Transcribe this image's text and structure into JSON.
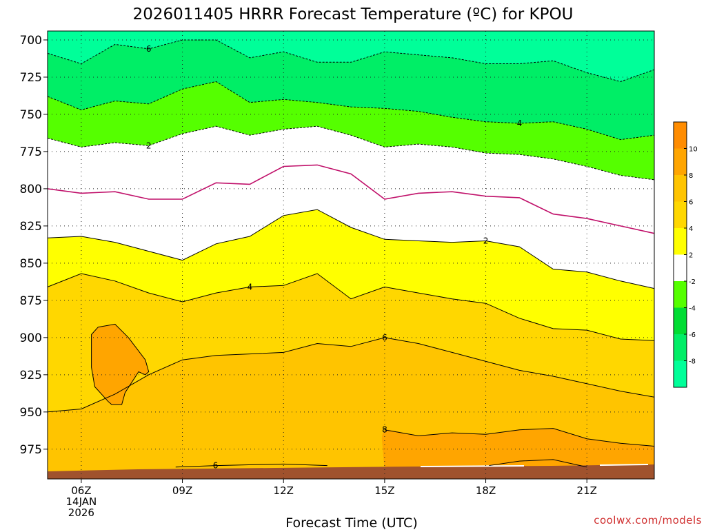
{
  "chart_data": {
    "type": "contour",
    "title": "2026011405 HRRR Forecast Temperature (ºC) for KPOU",
    "xlabel": "Forecast Time (UTC)",
    "ylabel": "",
    "credit": "coolwx.com/models",
    "x_ticks": [
      {
        "hour": 6,
        "label": "06Z",
        "sub": [
          "14JAN",
          "2026"
        ]
      },
      {
        "hour": 9,
        "label": "09Z",
        "sub": []
      },
      {
        "hour": 12,
        "label": "12Z",
        "sub": []
      },
      {
        "hour": 15,
        "label": "15Z",
        "sub": []
      },
      {
        "hour": 18,
        "label": "18Z",
        "sub": []
      },
      {
        "hour": 21,
        "label": "21Z",
        "sub": []
      }
    ],
    "xlim_hours": [
      5,
      23
    ],
    "y_axis": {
      "label": "",
      "inverted": true,
      "units": "hPa"
    },
    "y_ticks": [
      700,
      725,
      750,
      775,
      800,
      825,
      850,
      875,
      900,
      925,
      950,
      975
    ],
    "ylim": [
      694,
      995
    ],
    "grid": true,
    "hours": [
      5,
      6,
      7,
      8,
      9,
      10,
      11,
      12,
      13,
      14,
      15,
      16,
      17,
      18,
      19,
      20,
      21,
      22,
      23
    ],
    "isotherms": [
      {
        "temp": -6,
        "style": "dashed",
        "label": "6",
        "label_at_hour": 8,
        "p": [
          709,
          716,
          703,
          706,
          700,
          700,
          712,
          708,
          715,
          715,
          708,
          710,
          712,
          716,
          716,
          714,
          722,
          728,
          720
        ]
      },
      {
        "temp": -4,
        "style": "dashed",
        "label": "4",
        "label_at_hour": 19,
        "p": [
          738,
          747,
          741,
          743,
          733,
          728,
          742,
          740,
          742,
          745,
          746,
          748,
          752,
          755,
          756,
          755,
          760,
          767,
          764
        ]
      },
      {
        "temp": -2,
        "style": "dashed",
        "label": "2",
        "label_at_hour": 8,
        "p": [
          766,
          772,
          769,
          771,
          763,
          758,
          764,
          760,
          758,
          764,
          772,
          770,
          772,
          776,
          777,
          780,
          785,
          791,
          794
        ]
      },
      {
        "temp": 0,
        "style": "solid",
        "color": "#c0106a",
        "label": "",
        "label_at_hour": null,
        "p": [
          800,
          803,
          802,
          807,
          807,
          796,
          797,
          785,
          784,
          790,
          807,
          803,
          802,
          805,
          806,
          817,
          820,
          825,
          830
        ]
      },
      {
        "temp": 2,
        "style": "solid",
        "label": "2",
        "label_at_hour": 18,
        "p": [
          833,
          832,
          836,
          842,
          848,
          837,
          832,
          818,
          814,
          826,
          834,
          835,
          836,
          835,
          839,
          854,
          856,
          862,
          867
        ]
      },
      {
        "temp": 4,
        "style": "solid",
        "label": "4",
        "label_at_hour": 11,
        "p": [
          866,
          857,
          862,
          870,
          876,
          870,
          866,
          865,
          857,
          874,
          866,
          870,
          874,
          877,
          887,
          894,
          895,
          901,
          902
        ]
      },
      {
        "temp": 6,
        "style": "solid",
        "label": "6",
        "label_at_hour": 15,
        "p": [
          950,
          948,
          938,
          925,
          915,
          912,
          911,
          910,
          904,
          906,
          900,
          904,
          910,
          916,
          922,
          926,
          931,
          936,
          940
        ]
      },
      {
        "temp": 8,
        "style": "solid",
        "label": "8",
        "label_at_hour": 15,
        "p": [
          null,
          null,
          null,
          null,
          null,
          null,
          null,
          null,
          null,
          null,
          962,
          966,
          964,
          965,
          962,
          961,
          968,
          971,
          973
        ]
      }
    ],
    "closed_contours": [
      {
        "temp": 6,
        "note": "warm pocket",
        "points": [
          [
            6.3,
            898
          ],
          [
            6.5,
            893
          ],
          [
            7.0,
            891
          ],
          [
            7.4,
            900
          ],
          [
            7.9,
            915
          ],
          [
            8.0,
            923
          ],
          [
            7.9,
            925
          ],
          [
            7.7,
            923
          ],
          [
            7.3,
            937
          ],
          [
            7.2,
            945
          ],
          [
            6.9,
            945
          ],
          [
            6.8,
            943
          ],
          [
            6.4,
            933
          ],
          [
            6.3,
            920
          ],
          [
            6.3,
            898
          ]
        ]
      }
    ],
    "surface_labels": [
      {
        "hour": 9,
        "text": "6"
      }
    ],
    "colorbar": {
      "ticks": [
        10,
        8,
        6,
        4,
        2,
        -2,
        -4,
        -6,
        -8
      ],
      "bands": [
        {
          "from": 12,
          "to": 10,
          "color": "#ff8c00"
        },
        {
          "from": 10,
          "to": 8,
          "color": "#ffa500"
        },
        {
          "from": 8,
          "to": 6,
          "color": "#ffc400"
        },
        {
          "from": 6,
          "to": 4,
          "color": "#ffd700"
        },
        {
          "from": 4,
          "to": 2,
          "color": "#ffff00"
        },
        {
          "from": 2,
          "to": -2,
          "color": "#ffffff"
        },
        {
          "from": -2,
          "to": -4,
          "color": "#55ff00"
        },
        {
          "from": -4,
          "to": -6,
          "color": "#00dd33"
        },
        {
          "from": -6,
          "to": -8,
          "color": "#00ee66"
        },
        {
          "from": -8,
          "to": -10,
          "color": "#00ff99"
        }
      ]
    },
    "colors": {
      "lt_minus6": "#00ff99",
      "minus6_to_minus4": "#00ee66",
      "minus4_to_minus2": "#55ff00",
      "minus2_to_2": "#ffffff",
      "2_to_4": "#ffff00",
      "4_to_6": "#ffd700",
      "6_to_8": "#ffc400",
      "gt_8": "#ffa500",
      "ground": "#a0522d",
      "zero_line": "#c0106a"
    }
  }
}
